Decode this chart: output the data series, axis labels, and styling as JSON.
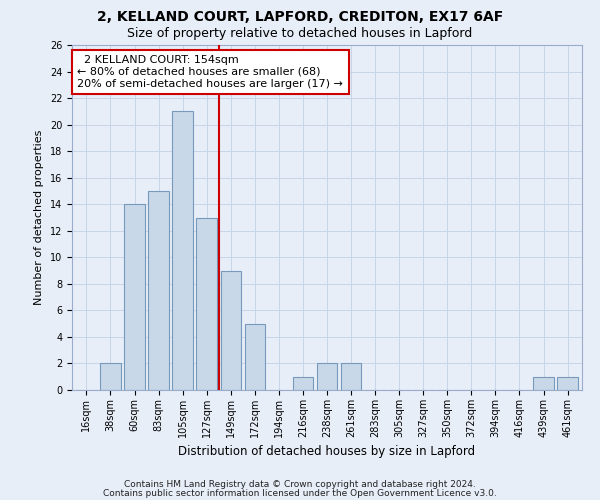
{
  "title1": "2, KELLAND COURT, LAPFORD, CREDITON, EX17 6AF",
  "title2": "Size of property relative to detached houses in Lapford",
  "xlabel": "Distribution of detached houses by size in Lapford",
  "ylabel": "Number of detached properties",
  "categories": [
    "16sqm",
    "38sqm",
    "60sqm",
    "83sqm",
    "105sqm",
    "127sqm",
    "149sqm",
    "172sqm",
    "194sqm",
    "216sqm",
    "238sqm",
    "261sqm",
    "283sqm",
    "305sqm",
    "327sqm",
    "350sqm",
    "372sqm",
    "394sqm",
    "416sqm",
    "439sqm",
    "461sqm"
  ],
  "values": [
    0,
    2,
    14,
    15,
    21,
    13,
    9,
    5,
    0,
    1,
    2,
    2,
    0,
    0,
    0,
    0,
    0,
    0,
    0,
    1,
    1
  ],
  "bar_color": "#c8d8e8",
  "bar_edge_color": "#7799bb",
  "vline_x": 5.5,
  "vline_color": "#cc0000",
  "annotation_text": "  2 KELLAND COURT: 154sqm  \n← 80% of detached houses are smaller (68)\n20% of semi-detached houses are larger (17) →",
  "annotation_box_color": "#ffffff",
  "annotation_box_edge": "#cc0000",
  "ylim": [
    0,
    26
  ],
  "yticks": [
    0,
    2,
    4,
    6,
    8,
    10,
    12,
    14,
    16,
    18,
    20,
    22,
    24,
    26
  ],
  "grid_color": "#c8d4e8",
  "footer1": "Contains HM Land Registry data © Crown copyright and database right 2024.",
  "footer2": "Contains public sector information licensed under the Open Government Licence v3.0.",
  "bg_color": "#e8eef8",
  "title1_fontsize": 10,
  "title2_fontsize": 9,
  "annotation_fontsize": 8,
  "tick_fontsize": 7,
  "ylabel_fontsize": 8,
  "xlabel_fontsize": 8.5,
  "footer_fontsize": 6.5
}
